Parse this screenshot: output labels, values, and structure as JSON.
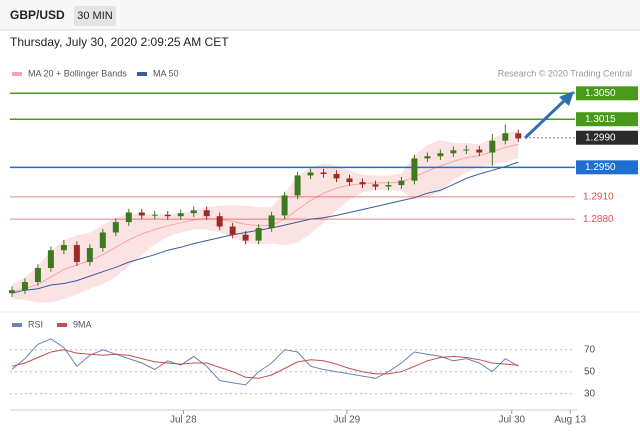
{
  "header": {
    "symbol": "GBP/USD",
    "interval": "30 MIN",
    "timestamp": "Thursday, July 30, 2020 2:09:25 AM CET"
  },
  "chart_data": [
    {
      "type": "candlestick",
      "credit": "Research © 2020 Trading Central",
      "xlim": [
        -0.15,
        43.6
      ],
      "ylim": [
        1.2764,
        1.3095
      ],
      "up_color": "#3d7a1f",
      "down_color": "#9e2b25",
      "open": [
        1.278,
        1.2784,
        1.2795,
        1.2814,
        1.2838,
        1.2845,
        1.2822,
        1.2841,
        1.2862,
        1.2876,
        1.2889,
        1.2885,
        1.2886,
        1.2884,
        1.2888,
        1.2892,
        1.2884,
        1.287,
        1.2859,
        1.2851,
        1.2868,
        1.2885,
        1.2912,
        1.2939,
        1.2943,
        1.2941,
        1.2935,
        1.293,
        1.2927,
        1.2924,
        1.2926,
        1.2932,
        1.2962,
        1.2965,
        1.2969,
        1.2973,
        1.2974,
        1.297,
        1.2986,
        1.2996
      ],
      "high": [
        1.2789,
        1.28,
        1.2819,
        1.2843,
        1.2852,
        1.285,
        1.2846,
        1.2867,
        1.2881,
        1.2894,
        1.2894,
        1.2891,
        1.2891,
        1.2893,
        1.2897,
        1.2897,
        1.2889,
        1.2875,
        1.2864,
        1.2873,
        1.289,
        1.2917,
        1.2944,
        1.2948,
        1.2948,
        1.2946,
        1.294,
        1.2935,
        1.2932,
        1.2931,
        1.2937,
        1.2967,
        1.297,
        1.2974,
        1.2978,
        1.298,
        1.2979,
        1.2995,
        1.3008,
        1.3001
      ],
      "low": [
        1.2775,
        1.2779,
        1.279,
        1.2809,
        1.2833,
        1.2817,
        1.2817,
        1.2836,
        1.2857,
        1.2871,
        1.288,
        1.288,
        1.2879,
        1.2879,
        1.2883,
        1.2879,
        1.2865,
        1.2854,
        1.2846,
        1.2846,
        1.2863,
        1.288,
        1.2907,
        1.2934,
        1.2936,
        1.293,
        1.2925,
        1.2922,
        1.2919,
        1.2919,
        1.2921,
        1.2927,
        1.2957,
        1.296,
        1.2964,
        1.2968,
        1.2965,
        1.2952,
        1.2981,
        1.2984
      ],
      "close": [
        1.2784,
        1.2795,
        1.2814,
        1.2838,
        1.2845,
        1.2822,
        1.2841,
        1.2862,
        1.2876,
        1.2889,
        1.2885,
        1.2886,
        1.2884,
        1.2888,
        1.2892,
        1.2884,
        1.287,
        1.2859,
        1.2851,
        1.2868,
        1.2885,
        1.2912,
        1.2939,
        1.2943,
        1.2941,
        1.2935,
        1.293,
        1.2927,
        1.2924,
        1.2926,
        1.2932,
        1.2962,
        1.2965,
        1.2969,
        1.2973,
        1.2974,
        1.297,
        1.2986,
        1.2996,
        1.2989
      ],
      "band": {
        "name": "MA 20 + Bollinger Bands",
        "color": "#f4a7a7",
        "fill": "#fbdcdc",
        "values": [
          1.2782,
          1.2786,
          1.2792,
          1.2802,
          1.2812,
          1.2818,
          1.2824,
          1.2832,
          1.2842,
          1.2852,
          1.286,
          1.2866,
          1.2871,
          1.2875,
          1.2879,
          1.2881,
          1.288,
          1.2877,
          1.2873,
          1.2871,
          1.2872,
          1.288,
          1.2893,
          1.2905,
          1.2915,
          1.2922,
          1.2926,
          1.2928,
          1.2929,
          1.2929,
          1.293,
          1.2937,
          1.2945,
          1.2952,
          1.2958,
          1.2963,
          1.2966,
          1.2971,
          1.2977,
          1.2981
        ],
        "upper": [
          1.2792,
          1.2801,
          1.2817,
          1.2837,
          1.2852,
          1.2858,
          1.2862,
          1.2872,
          1.2882,
          1.2887,
          1.2888,
          1.2886,
          1.2886,
          1.2888,
          1.2892,
          1.2896,
          1.2898,
          1.2899,
          1.2898,
          1.2896,
          1.2897,
          1.2915,
          1.2938,
          1.295,
          1.2955,
          1.2952,
          1.2946,
          1.294,
          1.2939,
          1.2939,
          1.2942,
          1.2967,
          1.298,
          1.2987,
          1.2983,
          1.2983,
          1.2981,
          1.2989,
          1.2997,
          1.2999
        ],
        "lower": [
          1.2772,
          1.2771,
          1.2767,
          1.2767,
          1.2772,
          1.2778,
          1.2786,
          1.2792,
          1.2802,
          1.2817,
          1.2832,
          1.2846,
          1.2856,
          1.2862,
          1.2866,
          1.2866,
          1.2862,
          1.2855,
          1.2848,
          1.2846,
          1.2847,
          1.2845,
          1.2848,
          1.286,
          1.2875,
          1.2892,
          1.2906,
          1.2916,
          1.2919,
          1.2919,
          1.2918,
          1.2907,
          1.291,
          1.2917,
          1.2933,
          1.2943,
          1.2951,
          1.2953,
          1.2957,
          1.2963
        ]
      },
      "series": [
        {
          "name": "MA 50",
          "color": "#3a5b9c",
          "values": [
            1.278,
            1.2784,
            1.2786,
            1.2791,
            1.2793,
            1.2797,
            1.2803,
            1.2809,
            1.2815,
            1.2822,
            1.2827,
            1.2832,
            1.2838,
            1.2842,
            1.2847,
            1.2851,
            1.2855,
            1.2859,
            1.2862,
            1.2865,
            1.2868,
            1.2872,
            1.2876,
            1.288,
            1.2882,
            1.2885,
            1.2889,
            1.2893,
            1.2897,
            1.2901,
            1.2905,
            1.2909,
            1.2915,
            1.2919,
            1.2927,
            1.2935,
            1.2941,
            1.2946,
            1.2951,
            1.2957
          ]
        }
      ],
      "levels": [
        {
          "value": 1.305,
          "label": "1.3050",
          "color": "#4a9a1a",
          "style": "box"
        },
        {
          "value": 1.3015,
          "label": "1.3015",
          "color": "#4a9a1a",
          "style": "box"
        },
        {
          "value": 1.299,
          "label": "1.2990",
          "color": "#2b2b2b",
          "style": "current"
        },
        {
          "value": 1.295,
          "label": "1.2950",
          "color": "#1e6fd0",
          "style": "box"
        },
        {
          "value": 1.291,
          "label": "1.2910",
          "color": "#d9534f",
          "style": "text"
        },
        {
          "value": 1.288,
          "label": "1.2880",
          "color": "#d9534f",
          "style": "text"
        }
      ]
    },
    {
      "type": "line",
      "xlim": [
        -0.15,
        43.6
      ],
      "ylim": [
        17,
        88
      ],
      "yticks": [
        30,
        50,
        70
      ],
      "xticks": [
        {
          "value": 13.2,
          "label": "Jul 28"
        },
        {
          "value": 25.8,
          "label": "Jul 29"
        },
        {
          "value": 38.5,
          "label": "Jul 30"
        },
        {
          "value": 43.0,
          "label": "Aug 13"
        }
      ],
      "series": [
        {
          "name": "RSI",
          "color": "#6d82b8",
          "values": [
            52,
            62,
            75,
            80,
            72,
            55,
            65,
            70,
            66,
            62,
            58,
            52,
            60,
            56,
            64,
            55,
            42,
            40,
            38,
            50,
            58,
            70,
            68,
            55,
            52,
            50,
            48,
            46,
            44,
            50,
            58,
            68,
            66,
            64,
            60,
            62,
            58,
            50,
            62,
            55
          ]
        },
        {
          "name": "9MA",
          "color": "#c0504d",
          "values": [
            55,
            58,
            63,
            68,
            70,
            67,
            66,
            65,
            66,
            65,
            62,
            59,
            58,
            57,
            58,
            58,
            54,
            50,
            45,
            44,
            47,
            53,
            59,
            61,
            60,
            57,
            53,
            50,
            48,
            48,
            50,
            55,
            60,
            63,
            64,
            63,
            61,
            58,
            57,
            56
          ]
        }
      ]
    }
  ]
}
